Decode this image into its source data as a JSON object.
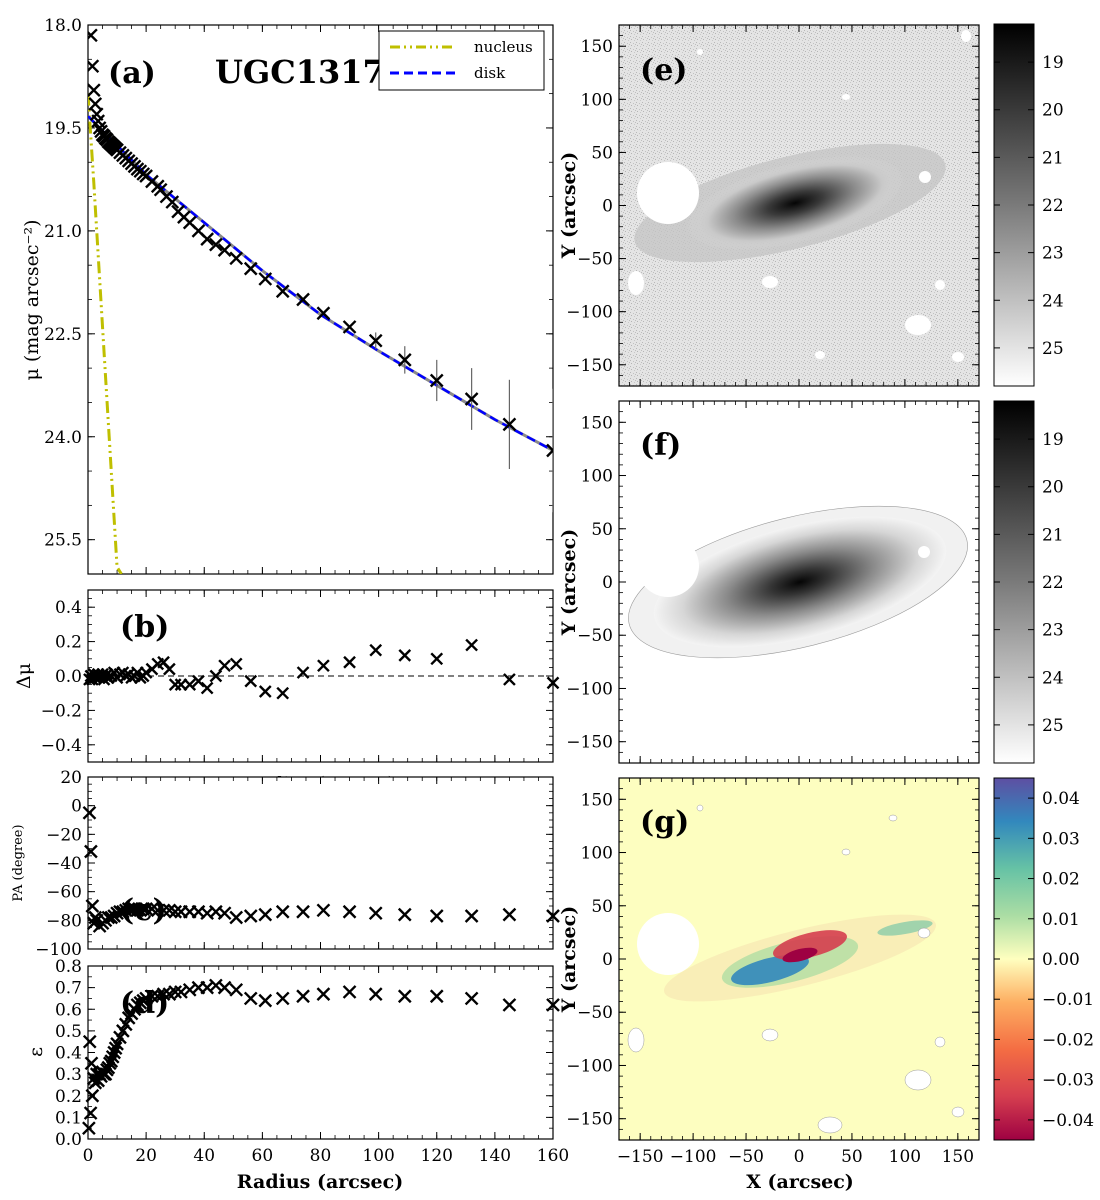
{
  "figure": {
    "title": "UGC1317",
    "legend": [
      {
        "label": "nucleus",
        "color": "#bfbf00",
        "dash": "dashdotdot"
      },
      {
        "label": "disk",
        "color": "#0000ff",
        "dash": "dashed"
      }
    ],
    "panel_labels": {
      "a": "(a)",
      "b": "(b)",
      "c": "(c)",
      "d": "(d)",
      "e": "(e)",
      "f": "(f)",
      "g": "(g)"
    }
  },
  "chart_data": [
    {
      "panel": "a",
      "type": "scatter",
      "title": "UGC1317",
      "xlabel": "",
      "ylabel": "μ (mag arcsec⁻²)",
      "xlim": [
        0,
        160
      ],
      "ylim": [
        26.0,
        18.0
      ],
      "y_inverted": true,
      "yticks": [
        "18.0",
        "19.5",
        "21.0",
        "22.5",
        "24.0",
        "25.5"
      ],
      "series": [
        {
          "name": "data",
          "marker": "x",
          "x": [
            1.0,
            1.5,
            2,
            2.5,
            3,
            3.5,
            4,
            4.5,
            5,
            5.5,
            6,
            6.5,
            7,
            7.5,
            8,
            8.5,
            9,
            9.5,
            10,
            11,
            12,
            13,
            14,
            15,
            16,
            17,
            18,
            19,
            20,
            22,
            24,
            25,
            27,
            29,
            31,
            33,
            35,
            38,
            41,
            44,
            47,
            51,
            56,
            61,
            67,
            74,
            81,
            90,
            99,
            109,
            120,
            132,
            145,
            160
          ],
          "y": [
            18.15,
            18.6,
            18.95,
            19.15,
            19.3,
            19.4,
            19.5,
            19.55,
            19.6,
            19.62,
            19.65,
            19.67,
            19.7,
            19.72,
            19.74,
            19.76,
            19.78,
            19.8,
            19.82,
            19.86,
            19.9,
            19.94,
            19.98,
            20.02,
            20.06,
            20.1,
            20.13,
            20.17,
            20.2,
            20.28,
            20.35,
            20.4,
            20.5,
            20.58,
            20.72,
            20.8,
            20.88,
            21.0,
            21.12,
            21.2,
            21.28,
            21.4,
            21.55,
            21.7,
            21.88,
            22.0,
            22.2,
            22.4,
            22.6,
            22.88,
            23.18,
            23.45,
            23.82,
            24.2
          ],
          "error_x": [
            99,
            109,
            120,
            132,
            145,
            160
          ],
          "error_y": [
            0.12,
            0.2,
            0.3,
            0.45,
            0.65,
            0.9
          ]
        },
        {
          "name": "nucleus",
          "x": [
            0,
            2,
            4,
            6,
            8,
            10,
            11.5
          ],
          "y": [
            19.0,
            20.3,
            21.7,
            23.1,
            24.5,
            25.9,
            26.0
          ]
        },
        {
          "name": "disk",
          "x": [
            0,
            20,
            40,
            60,
            80,
            100,
            120,
            140,
            160
          ],
          "y": [
            19.33,
            20.18,
            20.88,
            21.58,
            22.22,
            22.75,
            23.25,
            23.75,
            24.2
          ]
        }
      ]
    },
    {
      "panel": "b",
      "type": "scatter",
      "xlabel": "Radius (arcsec)",
      "ylabel": "Δμ",
      "xlim": [
        0,
        160
      ],
      "ylim": [
        -0.5,
        0.5
      ],
      "yticks": [
        "−0.4",
        "−0.2",
        "0.0",
        "0.2",
        "0.4"
      ],
      "x": [
        0.5,
        1,
        1.5,
        2,
        2.5,
        3,
        3.5,
        4,
        4.5,
        5,
        5.5,
        6,
        6.5,
        7,
        8,
        9,
        10,
        11,
        12,
        13,
        14,
        15,
        16,
        17,
        18,
        19,
        20,
        22,
        24,
        26,
        28,
        30,
        32,
        35,
        38,
        41,
        44,
        47,
        51,
        56,
        61,
        67,
        74,
        81,
        90,
        99,
        109,
        120,
        132,
        145,
        160
      ],
      "y": [
        -0.02,
        0.0,
        -0.02,
        0.01,
        -0.01,
        0.0,
        0.01,
        -0.01,
        0.0,
        0.01,
        -0.02,
        0.0,
        0.01,
        -0.01,
        0.0,
        0.02,
        -0.01,
        0.01,
        0.02,
        0.0,
        0.01,
        -0.01,
        0.0,
        0.02,
        -0.01,
        0.0,
        0.02,
        0.04,
        0.07,
        0.08,
        0.04,
        -0.05,
        -0.05,
        -0.05,
        -0.03,
        -0.07,
        0.0,
        0.06,
        0.07,
        -0.03,
        -0.09,
        -0.1,
        0.02,
        0.06,
        0.08,
        0.15,
        0.12,
        0.1,
        0.18,
        -0.02,
        -0.04
      ]
    },
    {
      "panel": "c",
      "type": "scatter",
      "xlabel": "",
      "ylabel": "PA (degree)",
      "xlim": [
        0,
        160
      ],
      "ylim": [
        -100,
        20
      ],
      "yticks": [
        "20",
        "0",
        "−20",
        "−40",
        "−60",
        "−80",
        "−100"
      ],
      "x": [
        0.5,
        1,
        1.5,
        2,
        2.5,
        3,
        4,
        5,
        6,
        7,
        8,
        9,
        10,
        11,
        12,
        13,
        14,
        15,
        16,
        17,
        18,
        19,
        20,
        22,
        24,
        26,
        28,
        30,
        32,
        35,
        38,
        41,
        44,
        47,
        51,
        56,
        61,
        67,
        74,
        81,
        90,
        99,
        109,
        120,
        132,
        145,
        160
      ],
      "y": [
        -5,
        -32,
        -70,
        -82,
        -78,
        -80,
        -84,
        -82,
        -80,
        -78,
        -78,
        -77,
        -75,
        -74,
        -74,
        -73,
        -72,
        -72,
        -72,
        -73,
        -73,
        -72,
        -72,
        -72,
        -73,
        -73,
        -73,
        -74,
        -74,
        -74,
        -74,
        -75,
        -74,
        -75,
        -78,
        -77,
        -76,
        -74,
        -74,
        -73,
        -74,
        -75,
        -76,
        -77,
        -77,
        -76,
        -77
      ]
    },
    {
      "panel": "d",
      "type": "scatter",
      "xlabel": "Radius (arcsec)",
      "ylabel": "ε",
      "xlim": [
        0,
        160
      ],
      "ylim": [
        0.0,
        0.8
      ],
      "yticks": [
        "0.0",
        "0.1",
        "0.2",
        "0.3",
        "0.4",
        "0.5",
        "0.6",
        "0.7",
        "0.8"
      ],
      "xticks": [
        "0",
        "20",
        "40",
        "60",
        "80",
        "100",
        "120",
        "140",
        "160"
      ],
      "x": [
        0.3,
        0.6,
        0.9,
        1.2,
        1.5,
        2,
        2.5,
        3,
        3.5,
        4,
        4.5,
        5,
        5.5,
        6,
        6.5,
        7,
        7.5,
        8,
        8.5,
        9,
        9.5,
        10,
        11,
        12,
        13,
        14,
        15,
        16,
        17,
        18,
        19,
        20,
        22,
        24,
        26,
        28,
        30,
        32,
        35,
        38,
        41,
        44,
        47,
        51,
        56,
        61,
        67,
        74,
        81,
        90,
        99,
        109,
        120,
        132,
        145,
        160
      ],
      "y": [
        0.05,
        0.45,
        0.12,
        0.35,
        0.2,
        0.28,
        0.26,
        0.3,
        0.27,
        0.3,
        0.29,
        0.31,
        0.3,
        0.3,
        0.32,
        0.33,
        0.35,
        0.36,
        0.38,
        0.4,
        0.42,
        0.44,
        0.47,
        0.5,
        0.53,
        0.56,
        0.58,
        0.6,
        0.62,
        0.63,
        0.64,
        0.65,
        0.66,
        0.66,
        0.67,
        0.67,
        0.68,
        0.68,
        0.69,
        0.7,
        0.7,
        0.71,
        0.7,
        0.69,
        0.65,
        0.64,
        0.65,
        0.66,
        0.67,
        0.68,
        0.67,
        0.66,
        0.66,
        0.65,
        0.62,
        0.62
      ]
    },
    {
      "panel": "e",
      "type": "heatmap",
      "description_free": "",
      "xlabel": "",
      "ylabel": "Y (arcsec)",
      "xlim": [
        -170,
        170
      ],
      "ylim": [
        -170,
        170
      ],
      "yticks": [
        "150",
        "100",
        "50",
        "0",
        "−50",
        "−100",
        "−150"
      ],
      "colorbar": {
        "colormap": "gray_r",
        "ticks": [
          "19",
          "20",
          "21",
          "22",
          "23",
          "24",
          "25"
        ],
        "range": [
          18.2,
          25.8
        ]
      }
    },
    {
      "panel": "f",
      "type": "heatmap",
      "xlabel": "",
      "ylabel": "Y (arcsec)",
      "xlim": [
        -170,
        170
      ],
      "ylim": [
        -170,
        170
      ],
      "yticks": [
        "150",
        "100",
        "50",
        "0",
        "−50",
        "−100",
        "−150"
      ],
      "colorbar": {
        "colormap": "gray_r",
        "ticks": [
          "19",
          "20",
          "21",
          "22",
          "23",
          "24",
          "25"
        ],
        "range": [
          18.2,
          25.8
        ]
      }
    },
    {
      "panel": "g",
      "type": "heatmap",
      "xlabel": "X (arcsec)",
      "ylabel": "Y (arcsec)",
      "xlim": [
        -170,
        170
      ],
      "ylim": [
        -170,
        170
      ],
      "xticks": [
        "−150",
        "−100",
        "−50",
        "0",
        "50",
        "100",
        "150"
      ],
      "yticks": [
        "150",
        "100",
        "50",
        "0",
        "−50",
        "−100",
        "−150"
      ],
      "colorbar": {
        "colormap": "Spectral",
        "ticks": [
          "0.04",
          "0.03",
          "0.02",
          "0.01",
          "0.00",
          "−0.01",
          "−0.02",
          "−0.03",
          "−0.04"
        ],
        "range": [
          -0.045,
          0.045
        ]
      }
    }
  ]
}
